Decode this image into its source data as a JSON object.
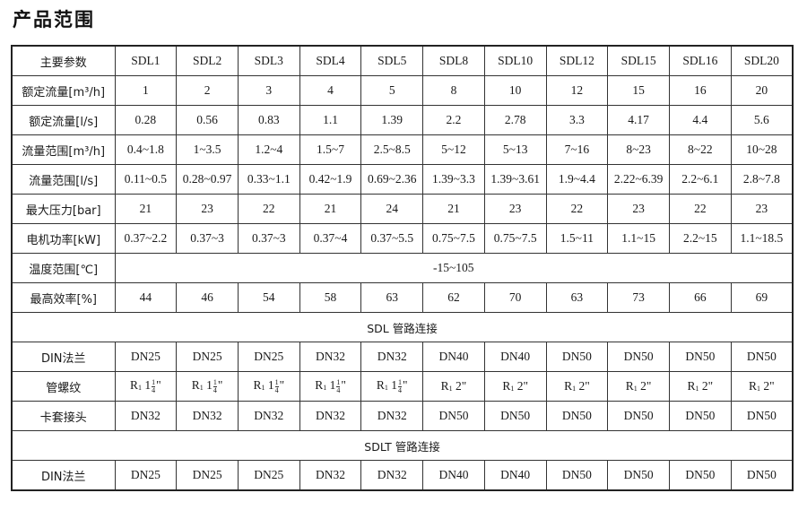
{
  "title": "产品范围",
  "header": {
    "label": "主要参数",
    "models": [
      "SDL1",
      "SDL2",
      "SDL3",
      "SDL4",
      "SDL5",
      "SDL8",
      "SDL10",
      "SDL12",
      "SDL15",
      "SDL16",
      "SDL20"
    ]
  },
  "rows": [
    {
      "label": "额定流量[m³/h]",
      "values": [
        "1",
        "2",
        "3",
        "4",
        "5",
        "8",
        "10",
        "12",
        "15",
        "16",
        "20"
      ]
    },
    {
      "label": "额定流量[l/s]",
      "values": [
        "0.28",
        "0.56",
        "0.83",
        "1.1",
        "1.39",
        "2.2",
        "2.78",
        "3.3",
        "4.17",
        "4.4",
        "5.6"
      ]
    },
    {
      "label": "流量范围[m³/h]",
      "values": [
        "0.4~1.8",
        "1~3.5",
        "1.2~4",
        "1.5~7",
        "2.5~8.5",
        "5~12",
        "5~13",
        "7~16",
        "8~23",
        "8~22",
        "10~28"
      ]
    },
    {
      "label": "流量范围[l/s]",
      "values": [
        "0.11~0.5",
        "0.28~0.97",
        "0.33~1.1",
        "0.42~1.9",
        "0.69~2.36",
        "1.39~3.3",
        "1.39~3.61",
        "1.9~4.4",
        "2.22~6.39",
        "2.2~6.1",
        "2.8~7.8"
      ]
    },
    {
      "label": "最大压力[bar]",
      "values": [
        "21",
        "23",
        "22",
        "21",
        "24",
        "21",
        "23",
        "22",
        "23",
        "22",
        "23"
      ]
    },
    {
      "label": "电机功率[kW]",
      "values": [
        "0.37~2.2",
        "0.37~3",
        "0.37~3",
        "0.37~4",
        "0.37~5.5",
        "0.75~7.5",
        "0.75~7.5",
        "1.5~11",
        "1.1~15",
        "2.2~15",
        "1.1~18.5"
      ]
    }
  ],
  "temperature": {
    "label": "温度范围[℃]",
    "value": "-15~105"
  },
  "efficiency": {
    "label": "最高效率[%]",
    "values": [
      "44",
      "46",
      "54",
      "58",
      "63",
      "62",
      "70",
      "63",
      "73",
      "66",
      "69"
    ]
  },
  "sdl_section": {
    "title": "SDL 管路连接",
    "din": {
      "label": "DIN法兰",
      "values": [
        "DN25",
        "DN25",
        "DN25",
        "DN32",
        "DN32",
        "DN40",
        "DN40",
        "DN50",
        "DN50",
        "DN50",
        "DN50"
      ]
    },
    "thread": {
      "label": "管螺纹",
      "values": [
        {
          "prefix": "R",
          "sub": "1",
          "whole": "1",
          "num": "1",
          "den": "4",
          "suffix": "\""
        },
        {
          "prefix": "R",
          "sub": "1",
          "whole": "1",
          "num": "1",
          "den": "4",
          "suffix": "\""
        },
        {
          "prefix": "R",
          "sub": "1",
          "whole": "1",
          "num": "1",
          "den": "4",
          "suffix": "\""
        },
        {
          "prefix": "R",
          "sub": "1",
          "whole": "1",
          "num": "1",
          "den": "4",
          "suffix": "\""
        },
        {
          "prefix": "R",
          "sub": "1",
          "whole": "1",
          "num": "1",
          "den": "4",
          "suffix": "\""
        },
        {
          "prefix": "R",
          "sub": "1",
          "whole": "2",
          "suffix": "\""
        },
        {
          "prefix": "R",
          "sub": "1",
          "whole": "2",
          "suffix": "\""
        },
        {
          "prefix": "R",
          "sub": "1",
          "whole": "2",
          "suffix": "\""
        },
        {
          "prefix": "R",
          "sub": "1",
          "whole": "2",
          "suffix": "\""
        },
        {
          "prefix": "R",
          "sub": "1",
          "whole": "2",
          "suffix": "\""
        },
        {
          "prefix": "R",
          "sub": "1",
          "whole": "2",
          "suffix": "\""
        }
      ]
    },
    "ferrule": {
      "label": "卡套接头",
      "values": [
        "DN32",
        "DN32",
        "DN32",
        "DN32",
        "DN32",
        "DN50",
        "DN50",
        "DN50",
        "DN50",
        "DN50",
        "DN50"
      ]
    }
  },
  "sdlt_section": {
    "title": "SDLT 管路连接",
    "din": {
      "label": "DIN法兰",
      "values": [
        "DN25",
        "DN25",
        "DN25",
        "DN32",
        "DN32",
        "DN40",
        "DN40",
        "DN50",
        "DN50",
        "DN50",
        "DN50"
      ]
    }
  }
}
